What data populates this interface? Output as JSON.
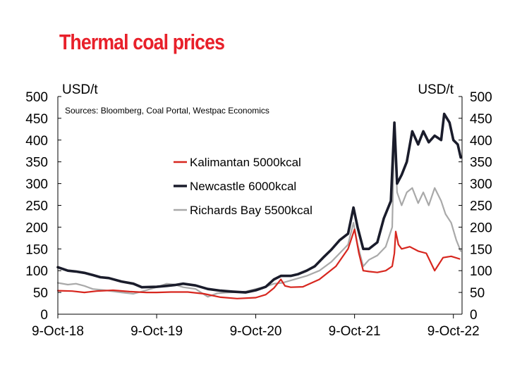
{
  "chart_data": {
    "type": "line",
    "title": "Thermal coal prices",
    "source_note": "Sources: Bloomberg, Coal Portal, Westpac Economics",
    "ylabel_left": "USD/t",
    "ylabel_right": "USD/t",
    "ylim": [
      0,
      500
    ],
    "y_ticks": [
      "0",
      "50",
      "100",
      "150",
      "200",
      "250",
      "300",
      "350",
      "400",
      "450",
      "500"
    ],
    "x_ticks": [
      "9-Oct-18",
      "9-Oct-19",
      "9-Oct-20",
      "9-Oct-21",
      "9-Oct-22"
    ],
    "x_range": [
      "2018-10-09",
      "2022-11-10"
    ],
    "grid": false,
    "legend_position": "center",
    "series": [
      {
        "name": "Kalimantan 5000kcal",
        "color": "#d7261e",
        "points": [
          [
            "2018-10-09",
            54
          ],
          [
            "2018-12-01",
            53
          ],
          [
            "2019-01-15",
            50
          ],
          [
            "2019-03-01",
            53
          ],
          [
            "2019-05-01",
            55
          ],
          [
            "2019-07-01",
            52
          ],
          [
            "2019-09-01",
            50
          ],
          [
            "2019-10-09",
            50
          ],
          [
            "2019-12-01",
            51
          ],
          [
            "2020-02-01",
            51
          ],
          [
            "2020-04-01",
            47
          ],
          [
            "2020-06-01",
            39
          ],
          [
            "2020-08-01",
            36
          ],
          [
            "2020-10-09",
            38
          ],
          [
            "2020-11-15",
            45
          ],
          [
            "2020-12-15",
            60
          ],
          [
            "2021-01-10",
            80
          ],
          [
            "2021-01-25",
            65
          ],
          [
            "2021-02-15",
            62
          ],
          [
            "2021-04-01",
            63
          ],
          [
            "2021-06-01",
            80
          ],
          [
            "2021-08-01",
            110
          ],
          [
            "2021-09-15",
            150
          ],
          [
            "2021-10-09",
            195
          ],
          [
            "2021-10-25",
            140
          ],
          [
            "2021-11-10",
            100
          ],
          [
            "2021-12-01",
            98
          ],
          [
            "2022-01-01",
            96
          ],
          [
            "2022-02-01",
            100
          ],
          [
            "2022-02-25",
            110
          ],
          [
            "2022-03-05",
            140
          ],
          [
            "2022-03-10",
            190
          ],
          [
            "2022-03-20",
            160
          ],
          [
            "2022-04-01",
            150
          ],
          [
            "2022-05-01",
            155
          ],
          [
            "2022-06-01",
            145
          ],
          [
            "2022-07-01",
            140
          ],
          [
            "2022-08-01",
            100
          ],
          [
            "2022-09-01",
            130
          ],
          [
            "2022-10-01",
            133
          ],
          [
            "2022-11-01",
            127
          ]
        ]
      },
      {
        "name": "Newcastle 6000kcal",
        "color": "#1a1c2b",
        "points": [
          [
            "2018-10-09",
            108
          ],
          [
            "2018-11-15",
            100
          ],
          [
            "2018-12-15",
            98
          ],
          [
            "2019-01-15",
            95
          ],
          [
            "2019-02-15",
            90
          ],
          [
            "2019-03-15",
            85
          ],
          [
            "2019-04-15",
            83
          ],
          [
            "2019-06-01",
            75
          ],
          [
            "2019-07-15",
            70
          ],
          [
            "2019-08-15",
            62
          ],
          [
            "2019-10-09",
            63
          ],
          [
            "2019-11-15",
            65
          ],
          [
            "2019-12-15",
            67
          ],
          [
            "2020-01-15",
            70
          ],
          [
            "2020-03-01",
            66
          ],
          [
            "2020-04-15",
            58
          ],
          [
            "2020-06-01",
            54
          ],
          [
            "2020-07-15",
            52
          ],
          [
            "2020-09-01",
            50
          ],
          [
            "2020-10-09",
            55
          ],
          [
            "2020-11-15",
            63
          ],
          [
            "2020-12-15",
            80
          ],
          [
            "2021-01-10",
            88
          ],
          [
            "2021-02-15",
            88
          ],
          [
            "2021-03-15",
            92
          ],
          [
            "2021-04-15",
            100
          ],
          [
            "2021-05-15",
            110
          ],
          [
            "2021-06-15",
            130
          ],
          [
            "2021-07-15",
            148
          ],
          [
            "2021-08-15",
            170
          ],
          [
            "2021-09-15",
            185
          ],
          [
            "2021-10-05",
            245
          ],
          [
            "2021-10-20",
            200
          ],
          [
            "2021-11-10",
            150
          ],
          [
            "2021-12-01",
            150
          ],
          [
            "2022-01-01",
            165
          ],
          [
            "2022-01-25",
            220
          ],
          [
            "2022-02-20",
            260
          ],
          [
            "2022-03-05",
            440
          ],
          [
            "2022-03-15",
            300
          ],
          [
            "2022-04-01",
            320
          ],
          [
            "2022-04-20",
            350
          ],
          [
            "2022-05-10",
            420
          ],
          [
            "2022-06-01",
            390
          ],
          [
            "2022-06-20",
            420
          ],
          [
            "2022-07-10",
            395
          ],
          [
            "2022-08-01",
            410
          ],
          [
            "2022-08-25",
            400
          ],
          [
            "2022-09-05",
            460
          ],
          [
            "2022-09-25",
            440
          ],
          [
            "2022-10-09",
            400
          ],
          [
            "2022-10-25",
            390
          ],
          [
            "2022-11-05",
            360
          ]
        ]
      },
      {
        "name": "Richards Bay 5500kcal",
        "color": "#a9a9a9",
        "points": [
          [
            "2018-10-09",
            72
          ],
          [
            "2018-11-15",
            68
          ],
          [
            "2018-12-15",
            70
          ],
          [
            "2019-01-15",
            65
          ],
          [
            "2019-02-15",
            58
          ],
          [
            "2019-04-01",
            55
          ],
          [
            "2019-06-01",
            50
          ],
          [
            "2019-07-15",
            47
          ],
          [
            "2019-09-01",
            55
          ],
          [
            "2019-10-09",
            62
          ],
          [
            "2019-11-15",
            70
          ],
          [
            "2019-12-15",
            68
          ],
          [
            "2020-01-15",
            62
          ],
          [
            "2020-03-01",
            58
          ],
          [
            "2020-04-15",
            40
          ],
          [
            "2020-05-20",
            48
          ],
          [
            "2020-07-01",
            50
          ],
          [
            "2020-09-01",
            52
          ],
          [
            "2020-10-09",
            58
          ],
          [
            "2020-11-15",
            63
          ],
          [
            "2020-12-15",
            70
          ],
          [
            "2021-01-15",
            72
          ],
          [
            "2021-03-01",
            80
          ],
          [
            "2021-04-15",
            88
          ],
          [
            "2021-06-01",
            100
          ],
          [
            "2021-07-15",
            120
          ],
          [
            "2021-08-15",
            140
          ],
          [
            "2021-09-15",
            160
          ],
          [
            "2021-10-05",
            210
          ],
          [
            "2021-10-20",
            160
          ],
          [
            "2021-11-10",
            110
          ],
          [
            "2021-12-01",
            125
          ],
          [
            "2022-01-01",
            135
          ],
          [
            "2022-02-01",
            155
          ],
          [
            "2022-02-25",
            200
          ],
          [
            "2022-03-05",
            420
          ],
          [
            "2022-03-15",
            280
          ],
          [
            "2022-04-01",
            250
          ],
          [
            "2022-04-20",
            280
          ],
          [
            "2022-05-10",
            290
          ],
          [
            "2022-06-01",
            255
          ],
          [
            "2022-06-20",
            280
          ],
          [
            "2022-07-10",
            250
          ],
          [
            "2022-08-01",
            290
          ],
          [
            "2022-08-25",
            260
          ],
          [
            "2022-09-10",
            230
          ],
          [
            "2022-10-01",
            210
          ],
          [
            "2022-10-20",
            170
          ],
          [
            "2022-11-05",
            145
          ]
        ]
      }
    ]
  }
}
